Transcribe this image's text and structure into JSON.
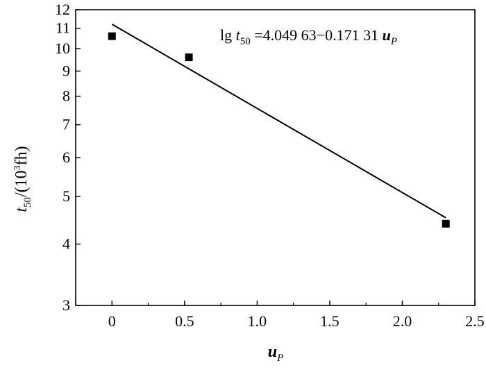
{
  "chart_data": {
    "type": "scatter",
    "title": "",
    "xlabel": {
      "var": "u",
      "sub": "P"
    },
    "ylabel": {
      "var": "t",
      "sub": "50",
      "unit_open": "/(10",
      "unit_sup": "3",
      "unit_close": "fh)"
    },
    "xlim": [
      -0.25,
      2.5
    ],
    "ylim": [
      3,
      12
    ],
    "yscale": "log",
    "x_ticks": [
      0,
      0.5,
      1.0,
      1.5,
      2.0,
      2.5
    ],
    "x_tick_labels": [
      "0",
      "0.5",
      "1.0",
      "1.5",
      "2.0",
      "2.5"
    ],
    "y_ticks": [
      3,
      4,
      5,
      6,
      7,
      8,
      9,
      10,
      11,
      12
    ],
    "y_tick_labels": [
      "3",
      "4",
      "5",
      "6",
      "7",
      "8",
      "9",
      "10",
      "11",
      "12"
    ],
    "grid": false,
    "series": [
      {
        "marker": "square",
        "color": "#000000",
        "x": [
          0,
          0.53,
          2.3
        ],
        "y": [
          10.6,
          9.6,
          4.4
        ]
      }
    ],
    "fit_line": {
      "intercept": 4.04963,
      "slope": -0.17131,
      "x_range": [
        0,
        2.3
      ],
      "color": "#000000"
    },
    "annotation": {
      "lead": "lg ",
      "var": "t",
      "sub": "50",
      "mid": " =4.049 63−0.171 31 ",
      "var2": "u",
      "sub2": "P"
    }
  }
}
